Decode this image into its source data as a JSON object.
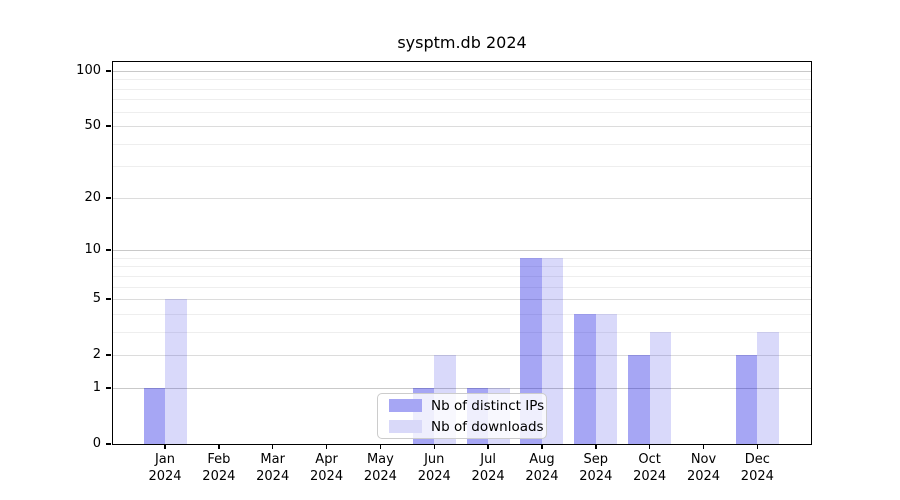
{
  "chart_data": {
    "type": "bar",
    "title": "sysptm.db 2024",
    "categories": [
      "Jan",
      "Feb",
      "Mar",
      "Apr",
      "May",
      "Jun",
      "Jul",
      "Aug",
      "Sep",
      "Oct",
      "Nov",
      "Dec"
    ],
    "category_year": "2024",
    "series": [
      {
        "name": "Nb of distinct IPs",
        "fill": "rgba(0,0,224,0.35)",
        "swatch": "#a6a6f4",
        "values": [
          1,
          0,
          0,
          0,
          0,
          1,
          1,
          9,
          4,
          2,
          0,
          2
        ]
      },
      {
        "name": "Nb of downloads",
        "fill": "rgba(0,0,224,0.15)",
        "swatch": "#d9d9f9",
        "values": [
          5,
          0,
          0,
          0,
          0,
          2,
          1,
          9,
          4,
          3,
          0,
          3
        ]
      }
    ],
    "yscale": "log10(1+y)",
    "ylim": [
      0,
      112
    ],
    "yticks": [
      0,
      1,
      2,
      5,
      10,
      20,
      50,
      100
    ],
    "minor_gridlines": [
      3,
      4,
      6,
      7,
      8,
      9,
      30,
      40,
      60,
      70,
      80,
      90
    ],
    "emphasized_gridlines": [
      1,
      10,
      100
    ],
    "grid": true,
    "legend_position": "lower center"
  },
  "colors": {
    "grid_minor": "#eeeeee",
    "grid_major": "#dcdcdc",
    "grid_emphasized": "#c9c9c9",
    "spine": "#000000",
    "background": "#ffffff",
    "legend_border": "#cccccc"
  }
}
